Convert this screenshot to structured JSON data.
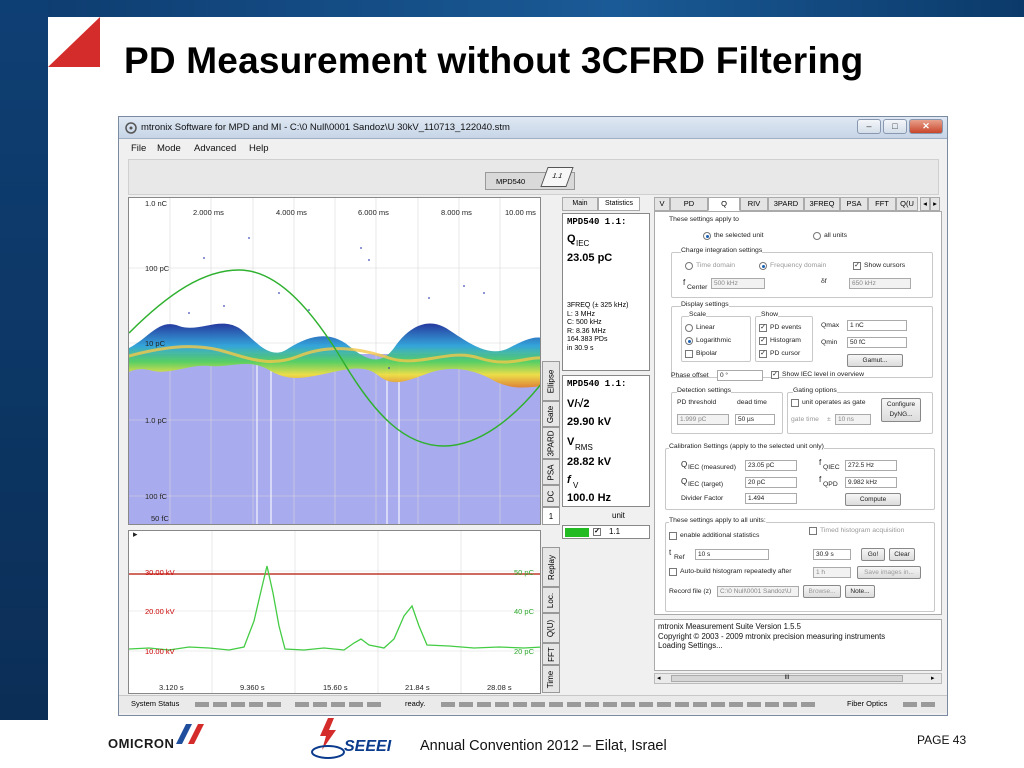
{
  "slide": {
    "title": "PD Measurement without 3CFRD Filtering",
    "footer_convention": "Annual Convention 2012 – Eilat, Israel",
    "footer_page": "PAGE 43",
    "logo_omicron": "OMICRON",
    "logo_seeei": "SEEEI"
  },
  "window": {
    "title": "mtronix Software for MPD and MI - C:\\0 Null\\0001 Sandoz\\U 30kV_110713_122040.stm",
    "minimize": "–",
    "maximize": "□",
    "close": "✕"
  },
  "menu": [
    "File",
    "Mode",
    "Advanced",
    "Help"
  ],
  "device": {
    "label": "MPD540",
    "chip": "1.1"
  },
  "top_plot": {
    "y_labels": [
      "1.0 nC",
      "100 pC",
      "10 pC",
      "1.0 pC",
      "100 fC",
      "50 fC"
    ],
    "x_labels": [
      "2.000 ms",
      "4.000 ms",
      "6.000 ms",
      "8.000 ms",
      "10.00 ms"
    ]
  },
  "bottom_plot": {
    "left_labels": [
      "30.00 kV",
      "20.00 kV",
      "10.00 kV"
    ],
    "right_labels": [
      "50 pC",
      "40 pC",
      "20 pC"
    ],
    "x_labels": [
      "3.120 s",
      "9.360 s",
      "15.60 s",
      "21.84 s",
      "28.08 s"
    ]
  },
  "side_tabs_top": [
    "Ellipse",
    "Gate",
    "3PARD",
    "PSA",
    "DC",
    "1"
  ],
  "side_tabs_bottom": [
    "Replay",
    "Loc.",
    "Q(U)",
    "FFT",
    "Time"
  ],
  "stats": {
    "tabs": [
      "Main",
      "Statistics"
    ],
    "box1": {
      "header": "MPD540 1.1:",
      "qlabel": "Q",
      "qsub": "IEC",
      "qvalue": "23.05 pC",
      "lines": [
        "3FREQ (± 325 kHz)",
        "L: 3 MHz",
        "C: 500 kHz",
        "R: 8.36 MHz",
        "164.383 PDs",
        "in 30.9 s"
      ]
    },
    "box2": {
      "header": "MPD540 1.1:",
      "vlabel": "V/√2",
      "vvalue": "29.90 kV",
      "rmslabel": "V",
      "rmssub": "RMS",
      "rmsvalue": "28.82 kV",
      "flabel": "f",
      "fsub": "V",
      "fvalue": "100.0 Hz"
    },
    "unit_header": "unit",
    "unit_value": "1.1",
    "unit_color": "#22bb22"
  },
  "settings_tabs": [
    "V",
    "PD",
    "Q",
    "RIV",
    "3PARD",
    "3FREQ",
    "PSA",
    "FFT",
    "Q(U"
  ],
  "settings": {
    "apply_label": "These settings apply to",
    "sel_unit": "the selected unit",
    "all_units": "all units",
    "charge_group": "Charge integration settings",
    "time_domain": "Time domain",
    "freq_domain": "Frequency domain",
    "show_cursors": "Show cursors",
    "fcenter_label": "f",
    "fcenter_sub": "Center",
    "fcenter_value": "500 kHz",
    "df_label": "δf",
    "df_value": "650 kHz",
    "display_group": "Display settings",
    "scale_label": "Scale",
    "linear": "Linear",
    "logarithmic": "Logarithmic",
    "bipolar": "Bipolar",
    "show_label": "Show",
    "pd_events": "PD events",
    "histogram": "Histogram",
    "pd_cursor": "PD cursor",
    "qmax_label": "Qmax",
    "qmax_value": "1 nC",
    "qmin_label": "Qmin",
    "qmin_value": "50 fC",
    "gamut": "Gamut...",
    "phase_offset_label": "Phase offset",
    "phase_offset_value": "0 °",
    "show_iec": "Show IEC level in overview",
    "detection_group": "Detection settings",
    "pd_threshold": "PD threshold",
    "dead_time": "dead time",
    "threshold_value": "1.999 pC",
    "dead_value": "50 µs",
    "gating_group": "Gating options",
    "gate_chk": "unit operates as gate",
    "gate_time_label": "gate time",
    "gate_time_pm": "±",
    "gate_time_value": "10 ns",
    "configure_dyng": "Configure DyNG...",
    "calibration_group": "Calibration Settings (apply to the selected unit only)",
    "qiec_meas_label": "Q",
    "qiec_meas_sub": "IEC (measured)",
    "qiec_meas_value": "23.05 pC",
    "qiec_tgt_label": "Q",
    "qiec_tgt_sub": "IEC (target)",
    "qiec_tgt_value": "20 pC",
    "divider_label": "Divider Factor",
    "divider_value": "1.494",
    "fqiec_label": "f",
    "fqiec_sub": "QIEC",
    "fqiec_value": "272.5 Hz",
    "fqpd_label": "f",
    "fqpd_sub": "QPD",
    "fqpd_value": "9.982 kHz",
    "compute": "Compute",
    "all_units_group": "These settings apply to all units:",
    "enable_stats": "enable additional statistics",
    "timed_hist": "Timed histogram acquisition",
    "tref_label": "t",
    "tref_sub": "Ref",
    "tref_value": "10 s",
    "timed_value": "30.9 s",
    "go": "Go!",
    "clear": "Clear",
    "autobuild": "Auto-build histogram repeatedly after",
    "autobuild_value": "1 h",
    "save_images": "Save images in...",
    "record_label": "Record file (z)",
    "record_value": "C:\\0 Null\\0001 Sandoz\\U",
    "browse": "Browse...",
    "note": "Note..."
  },
  "log": [
    "mtronix Measurement Suite Version 1.5.5",
    "Copyright © 2003 - 2009 mtronix precision measuring instruments",
    "Loading Settings..."
  ],
  "hscroll_grip": "III",
  "status": {
    "left": "System Status",
    "mid": "ready.",
    "right": "Fiber Optics"
  }
}
